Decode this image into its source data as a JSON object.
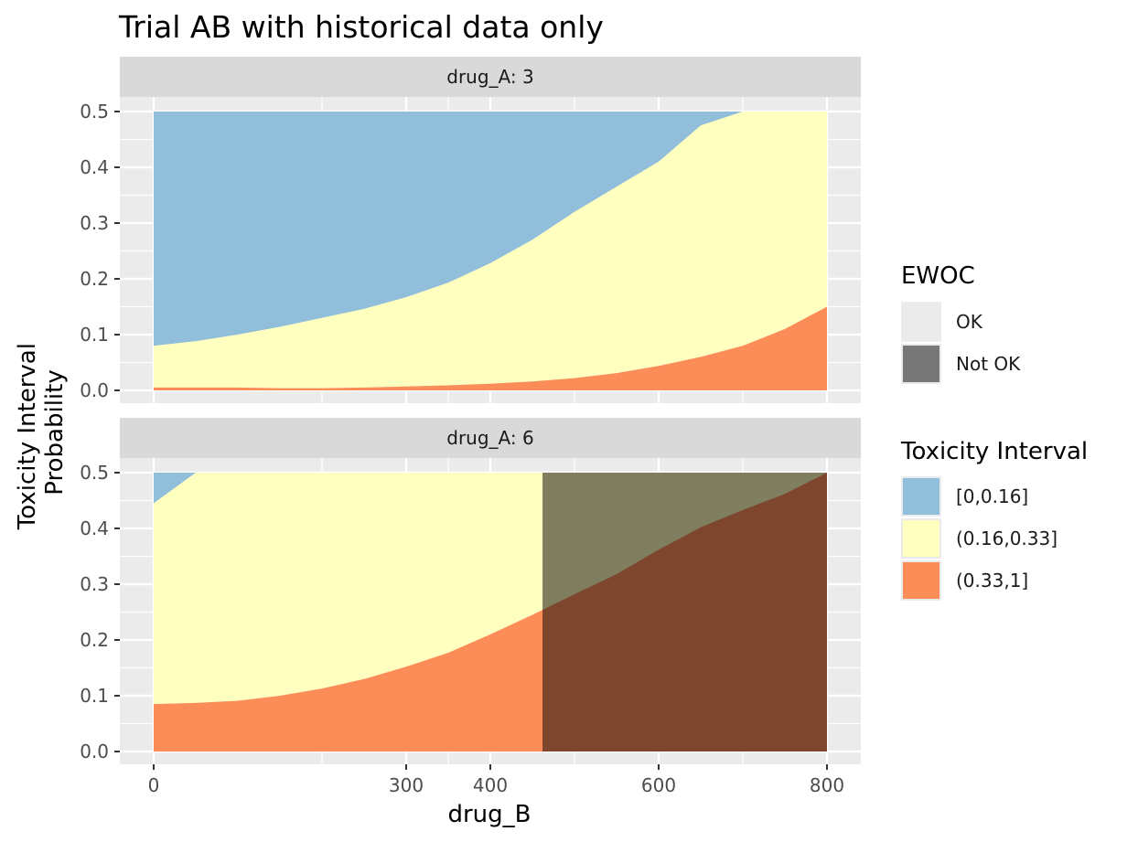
{
  "chart_data": {
    "type": "area",
    "title": "Trial AB with historical data only",
    "xlabel": "drug_B",
    "ylabel_lines": [
      "Toxicity Interval",
      "Probability"
    ],
    "xlim": [
      0,
      800
    ],
    "ylim": [
      0,
      0.5
    ],
    "x_ticks": [
      0,
      300,
      400,
      600,
      800
    ],
    "y_ticks": [
      "0.0",
      "0.1",
      "0.2",
      "0.3",
      "0.4",
      "0.5"
    ],
    "colors": {
      "low": "#91BEDB",
      "mid": "#FFFFBF",
      "high": "#FC8D59",
      "panel_bg": "#EBEBEB",
      "grid": "#FFFFFF",
      "strip_bg": "#D9D9D9",
      "ewoc_ok": "#EBEBEB",
      "ewoc_not_ok": "#777777"
    },
    "facets": [
      {
        "strip": "drug_A: 3",
        "x": [
          0,
          50,
          100,
          150,
          200,
          250,
          300,
          350,
          400,
          450,
          500,
          550,
          600,
          650,
          700,
          750,
          800
        ],
        "boundary_low": [
          0.08,
          0.088,
          0.1,
          0.114,
          0.13,
          0.146,
          0.167,
          0.193,
          0.228,
          0.27,
          0.32,
          0.365,
          0.41,
          0.475,
          0.5,
          0.5,
          0.5
        ],
        "boundary_high": [
          0.005,
          0.005,
          0.005,
          0.004,
          0.004,
          0.005,
          0.007,
          0.009,
          0.012,
          0.016,
          0.022,
          0.031,
          0.044,
          0.06,
          0.08,
          0.11,
          0.15
        ],
        "ewoc_not_ok_from": null
      },
      {
        "strip": "drug_A: 6",
        "x": [
          0,
          50,
          100,
          150,
          200,
          250,
          300,
          350,
          400,
          450,
          500,
          550,
          600,
          650,
          700,
          750,
          800
        ],
        "boundary_low": [
          0.445,
          0.5,
          0.5,
          0.5,
          0.5,
          0.5,
          0.5,
          0.5,
          0.5,
          0.5,
          0.5,
          0.5,
          0.5,
          0.5,
          0.5,
          0.5,
          0.5
        ],
        "boundary_high": [
          0.085,
          0.087,
          0.091,
          0.1,
          0.113,
          0.13,
          0.152,
          0.177,
          0.21,
          0.245,
          0.282,
          0.318,
          0.362,
          0.402,
          0.433,
          0.462,
          0.5
        ],
        "ewoc_not_ok_from": 462
      }
    ],
    "legends": [
      {
        "title": "EWOC",
        "items": [
          {
            "label": "OK",
            "color": "#EBEBEB"
          },
          {
            "label": "Not OK",
            "color": "#777777"
          }
        ]
      },
      {
        "title": "Toxicity Interval",
        "items": [
          {
            "label": "[0,0.16]",
            "color": "#91BEDB"
          },
          {
            "label": "(0.16,0.33]",
            "color": "#FFFFBF"
          },
          {
            "label": "(0.33,1]",
            "color": "#FC8D59"
          }
        ]
      }
    ]
  }
}
